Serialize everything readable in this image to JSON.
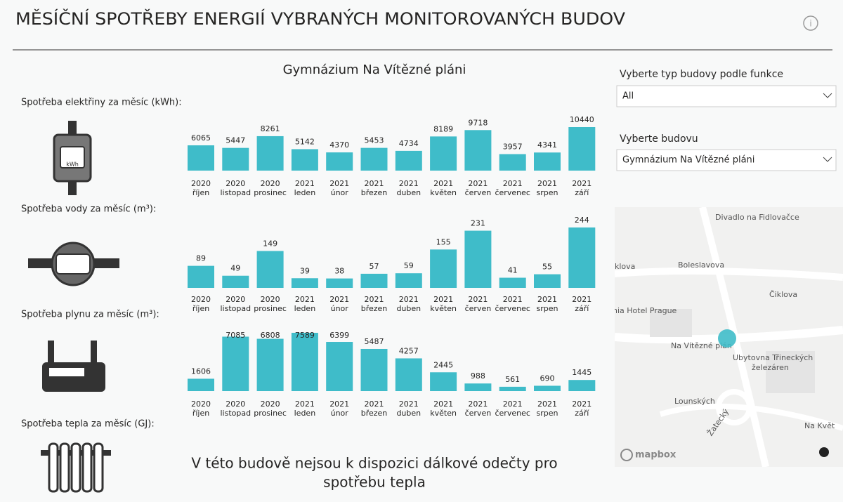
{
  "header": {
    "title": "MĚSÍČNÍ SPOTŘEBY ENERGIÍ VYBRANÝCH MONITOROVANÝCH BUDOV",
    "building": "Gymnázium Na Vítězné pláni"
  },
  "chart_data": [
    {
      "type": "bar",
      "title": "Spotřeba elektřiny za měsíc (kWh):",
      "color": "#3fbcc9",
      "categories": [
        "2020 říjen",
        "2020 listopad",
        "2020 prosinec",
        "2021 leden",
        "2021 únor",
        "2021 březen",
        "2021 duben",
        "2021 květen",
        "2021 červen",
        "2021 červenec",
        "2021 srpen",
        "2021 září"
      ],
      "values": [
        6065,
        5447,
        8261,
        5142,
        4370,
        5453,
        4734,
        8189,
        9718,
        3957,
        4341,
        10440
      ]
    },
    {
      "type": "bar",
      "title": "Spotřeba vody za měsíc (m³):",
      "color": "#3fbcc9",
      "categories": [
        "2020 říjen",
        "2020 listopad",
        "2020 prosinec",
        "2021 leden",
        "2021 únor",
        "2021 březen",
        "2021 duben",
        "2021 květen",
        "2021 červen",
        "2021 červenec",
        "2021 srpen",
        "2021 září"
      ],
      "values": [
        89,
        49,
        149,
        39,
        38,
        57,
        59,
        155,
        231,
        41,
        55,
        244
      ]
    },
    {
      "type": "bar",
      "title": "Spotřeba plynu za měsíc (m³):",
      "color": "#3fbcc9",
      "categories": [
        "2020 říjen",
        "2020 listopad",
        "2020 prosinec",
        "2021 leden",
        "2021 únor",
        "2021 březen",
        "2021 duben",
        "2021 květen",
        "2021 červen",
        "2021 červenec",
        "2021 srpen",
        "2021 září"
      ],
      "values": [
        1606,
        7085,
        6808,
        7589,
        6399,
        5487,
        4257,
        2445,
        988,
        561,
        690,
        1445
      ]
    }
  ],
  "heat": {
    "title": "Spotřeba tepla za měsíc (GJ):",
    "message": [
      "V této budově nejsou k dispozici dálkové odečty pro",
      "spotřebu tepla"
    ]
  },
  "filters": {
    "type_label": "Vyberte typ budovy podle funkce",
    "type_value": "All",
    "building_label": "Vyberte budovu",
    "building_value": "Gymnázium Na Vítězné pláni"
  },
  "map": {
    "labels": [
      "Divadlo na Fidlovačce",
      "Boleslavova",
      "klova",
      "Čiklova",
      "nia Hotel Prague",
      "Na Vítězné plán",
      "Ubytovna Třineckých",
      "železáren",
      "Lounských",
      "Žatecký",
      "Na Květ"
    ],
    "attribution": "mapbox"
  }
}
